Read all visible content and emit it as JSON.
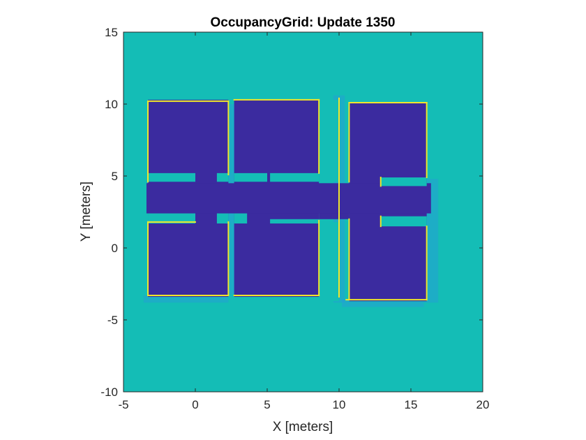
{
  "chart_data": {
    "type": "heatmap",
    "title": "OccupancyGrid: Update 1350",
    "xlabel": "X [meters]",
    "ylabel": "Y [meters]",
    "xlim": [
      -5,
      20
    ],
    "ylim": [
      -10,
      15
    ],
    "xticks": [
      "-5",
      "0",
      "5",
      "10",
      "15",
      "20"
    ],
    "yticks": [
      "15",
      "10",
      "5",
      "0",
      "-5",
      "-10"
    ],
    "colors": {
      "unknown": "#14bdb6",
      "free": "#3b2b9f",
      "occupied": "#f2e62a",
      "uncertain": "#2f8fe6"
    },
    "free_regions": [
      {
        "x0": -3.3,
        "x1": 2.3,
        "y0": -3.4,
        "y1": 10.3
      },
      {
        "x0": 2.7,
        "x1": 8.6,
        "y0": -3.4,
        "y1": 10.3
      },
      {
        "x0": 10.7,
        "x1": 16.1,
        "y0": -3.7,
        "y1": 10.1
      },
      {
        "x0": 8.6,
        "x1": 10.7,
        "y0": 2.0,
        "y1": 4.2
      },
      {
        "x0": -3.4,
        "x1": 16.4,
        "y0": 2.4,
        "y1": 4.5
      }
    ],
    "unknown_regions": [
      {
        "x0": -3.3,
        "x1": 0.0,
        "y0": 1.7,
        "y1": 2.4
      },
      {
        "x0": -3.3,
        "x1": 0.0,
        "y0": 4.6,
        "y1": 5.2
      },
      {
        "x0": 1.5,
        "x1": 2.3,
        "y0": 1.7,
        "y1": 2.4
      },
      {
        "x0": 1.5,
        "x1": 2.3,
        "y0": 4.6,
        "y1": 5.2
      },
      {
        "x0": 2.7,
        "x1": 3.6,
        "y0": 1.7,
        "y1": 2.4
      },
      {
        "x0": 2.7,
        "x1": 5.0,
        "y0": 4.6,
        "y1": 5.2
      },
      {
        "x0": 5.2,
        "x1": 8.6,
        "y0": 1.7,
        "y1": 2.0
      },
      {
        "x0": 5.2,
        "x1": 8.6,
        "y0": 4.6,
        "y1": 5.2
      },
      {
        "x0": 8.6,
        "x1": 10.0,
        "y0": 4.6,
        "y1": 10.3
      },
      {
        "x0": 8.6,
        "x1": 10.0,
        "y0": -3.7,
        "y1": 1.8
      },
      {
        "x0": 12.9,
        "x1": 16.1,
        "y0": 1.5,
        "y1": 2.2
      },
      {
        "x0": 12.9,
        "x1": 16.1,
        "y0": 4.3,
        "y1": 4.9
      }
    ],
    "occupied_segments": [
      [
        [
          -3.3,
          -3.3
        ],
        [
          -3.3,
          1.8
        ]
      ],
      [
        [
          -3.3,
          1.8
        ],
        [
          0.0,
          1.8
        ]
      ],
      [
        [
          -3.3,
          4.6
        ],
        [
          -3.3,
          10.2
        ]
      ],
      [
        [
          -3.3,
          10.2
        ],
        [
          2.3,
          10.2
        ]
      ],
      [
        [
          2.3,
          10.2
        ],
        [
          2.3,
          5.1
        ]
      ],
      [
        [
          -3.3,
          -3.3
        ],
        [
          2.3,
          -3.3
        ]
      ],
      [
        [
          2.3,
          -3.3
        ],
        [
          2.3,
          1.8
        ]
      ],
      [
        [
          2.7,
          -3.3
        ],
        [
          8.6,
          -3.3
        ]
      ],
      [
        [
          8.6,
          -3.3
        ],
        [
          8.6,
          1.9
        ]
      ],
      [
        [
          2.7,
          10.3
        ],
        [
          8.6,
          10.3
        ]
      ],
      [
        [
          8.6,
          10.3
        ],
        [
          8.6,
          5.2
        ]
      ],
      [
        [
          10.5,
          -3.6
        ],
        [
          16.1,
          -3.6
        ]
      ],
      [
        [
          16.1,
          -3.6
        ],
        [
          16.1,
          1.5
        ]
      ],
      [
        [
          10.7,
          10.1
        ],
        [
          16.1,
          10.1
        ]
      ],
      [
        [
          16.1,
          10.1
        ],
        [
          16.1,
          4.9
        ]
      ],
      [
        [
          10.0,
          -3.4
        ],
        [
          10.0,
          10.4
        ]
      ],
      [
        [
          10.7,
          10.1
        ],
        [
          10.7,
          4.6
        ]
      ],
      [
        [
          10.7,
          -3.6
        ],
        [
          10.7,
          2.0
        ]
      ],
      [
        [
          12.9,
          1.5
        ],
        [
          12.9,
          2.2
        ]
      ],
      [
        [
          12.9,
          4.3
        ],
        [
          12.9,
          4.9
        ]
      ]
    ]
  }
}
